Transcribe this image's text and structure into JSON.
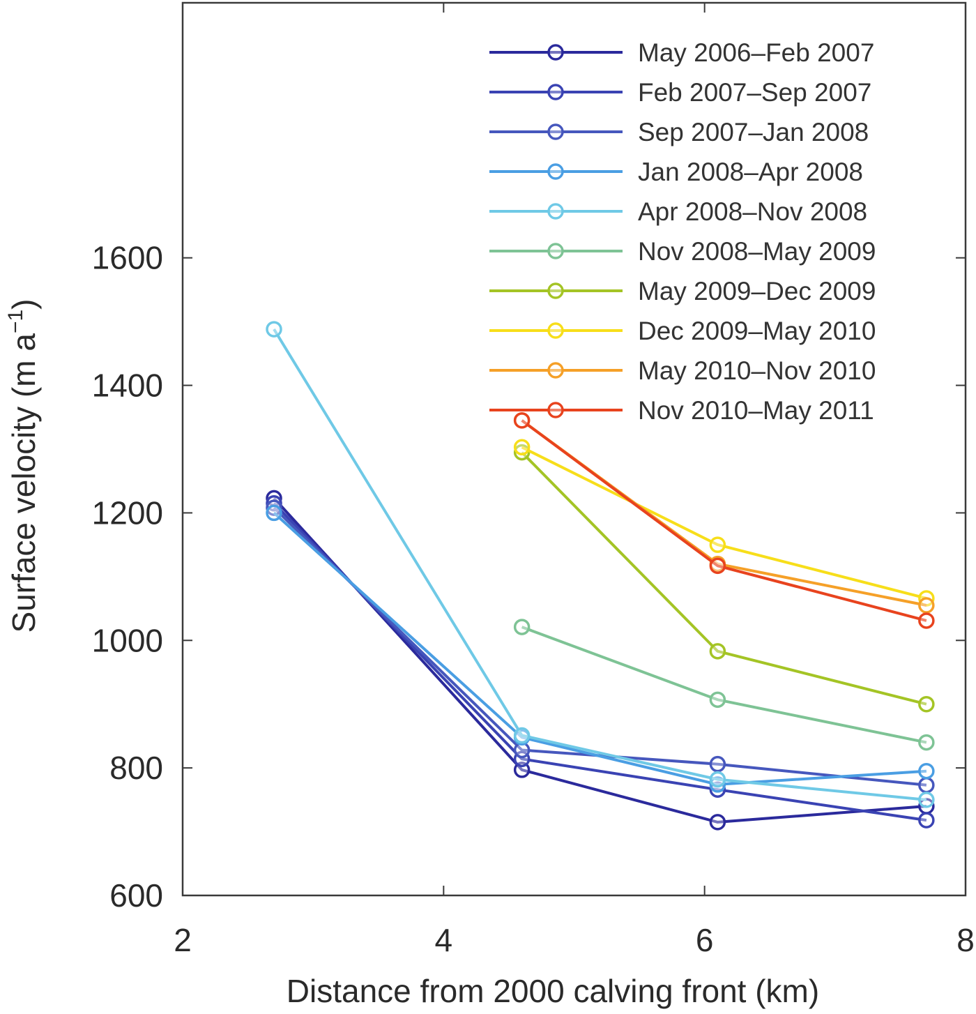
{
  "chart_data": {
    "type": "line",
    "xlabel": "Distance from 2000 calving front (km)",
    "ylabel": "Surface velocity (m a",
    "ylabel_sup": "−1",
    "ylabel_close": ")",
    "xlim": [
      2,
      8
    ],
    "ylim": [
      600,
      2000
    ],
    "xticks": [
      2,
      4,
      6,
      8
    ],
    "xtick_labels": [
      "2",
      "4",
      "6",
      "8"
    ],
    "yticks": [
      600,
      800,
      1000,
      1200,
      1400,
      1600
    ],
    "ytick_labels": [
      "600",
      "800",
      "1000",
      "1200",
      "1400",
      "1600"
    ],
    "grid": false,
    "legend_position": "top-right",
    "series": [
      {
        "name": "May 2006–Feb 2007",
        "color": "#2b2a9c",
        "x": [
          2.7,
          4.6,
          6.1,
          7.7
        ],
        "y": [
          1223,
          797,
          715,
          740
        ]
      },
      {
        "name": "Feb 2007–Sep 2007",
        "color": "#3a43b3",
        "x": [
          2.7,
          4.6,
          6.1,
          7.7
        ],
        "y": [
          1215,
          814,
          766,
          718
        ]
      },
      {
        "name": "Sep 2007–Jan 2008",
        "color": "#4657bd",
        "x": [
          2.7,
          4.6,
          6.1,
          7.7
        ],
        "y": [
          1208,
          828,
          806,
          773
        ]
      },
      {
        "name": "Jan 2008–Apr 2008",
        "color": "#4a9ee3",
        "x": [
          2.7,
          4.6,
          6.1,
          7.7
        ],
        "y": [
          1200,
          848,
          774,
          795
        ]
      },
      {
        "name": "Apr 2008–Nov 2008",
        "color": "#6fc9e6",
        "x": [
          2.7,
          4.6,
          6.1,
          7.7
        ],
        "y": [
          1488,
          851,
          782,
          750
        ]
      },
      {
        "name": "Nov 2008–May 2009",
        "color": "#7ec395",
        "x": [
          4.6,
          6.1,
          7.7
        ],
        "y": [
          1021,
          907,
          840
        ]
      },
      {
        "name": "May 2009–Dec 2009",
        "color": "#a4c425",
        "x": [
          4.6,
          6.1,
          7.7
        ],
        "y": [
          1295,
          983,
          900
        ]
      },
      {
        "name": "Dec 2009–May 2010",
        "color": "#f7de1a",
        "x": [
          4.6,
          6.1,
          7.7
        ],
        "y": [
          1303,
          1150,
          1066
        ]
      },
      {
        "name": "May 2010–Nov 2010",
        "color": "#f5a028",
        "x": [
          4.6,
          6.1,
          7.7
        ],
        "y": [
          1345,
          1120,
          1055
        ]
      },
      {
        "name": "Nov 2010–May 2011",
        "color": "#e8431e",
        "x": [
          4.6,
          6.1,
          7.7
        ],
        "y": [
          1345,
          1117,
          1031
        ]
      }
    ]
  }
}
